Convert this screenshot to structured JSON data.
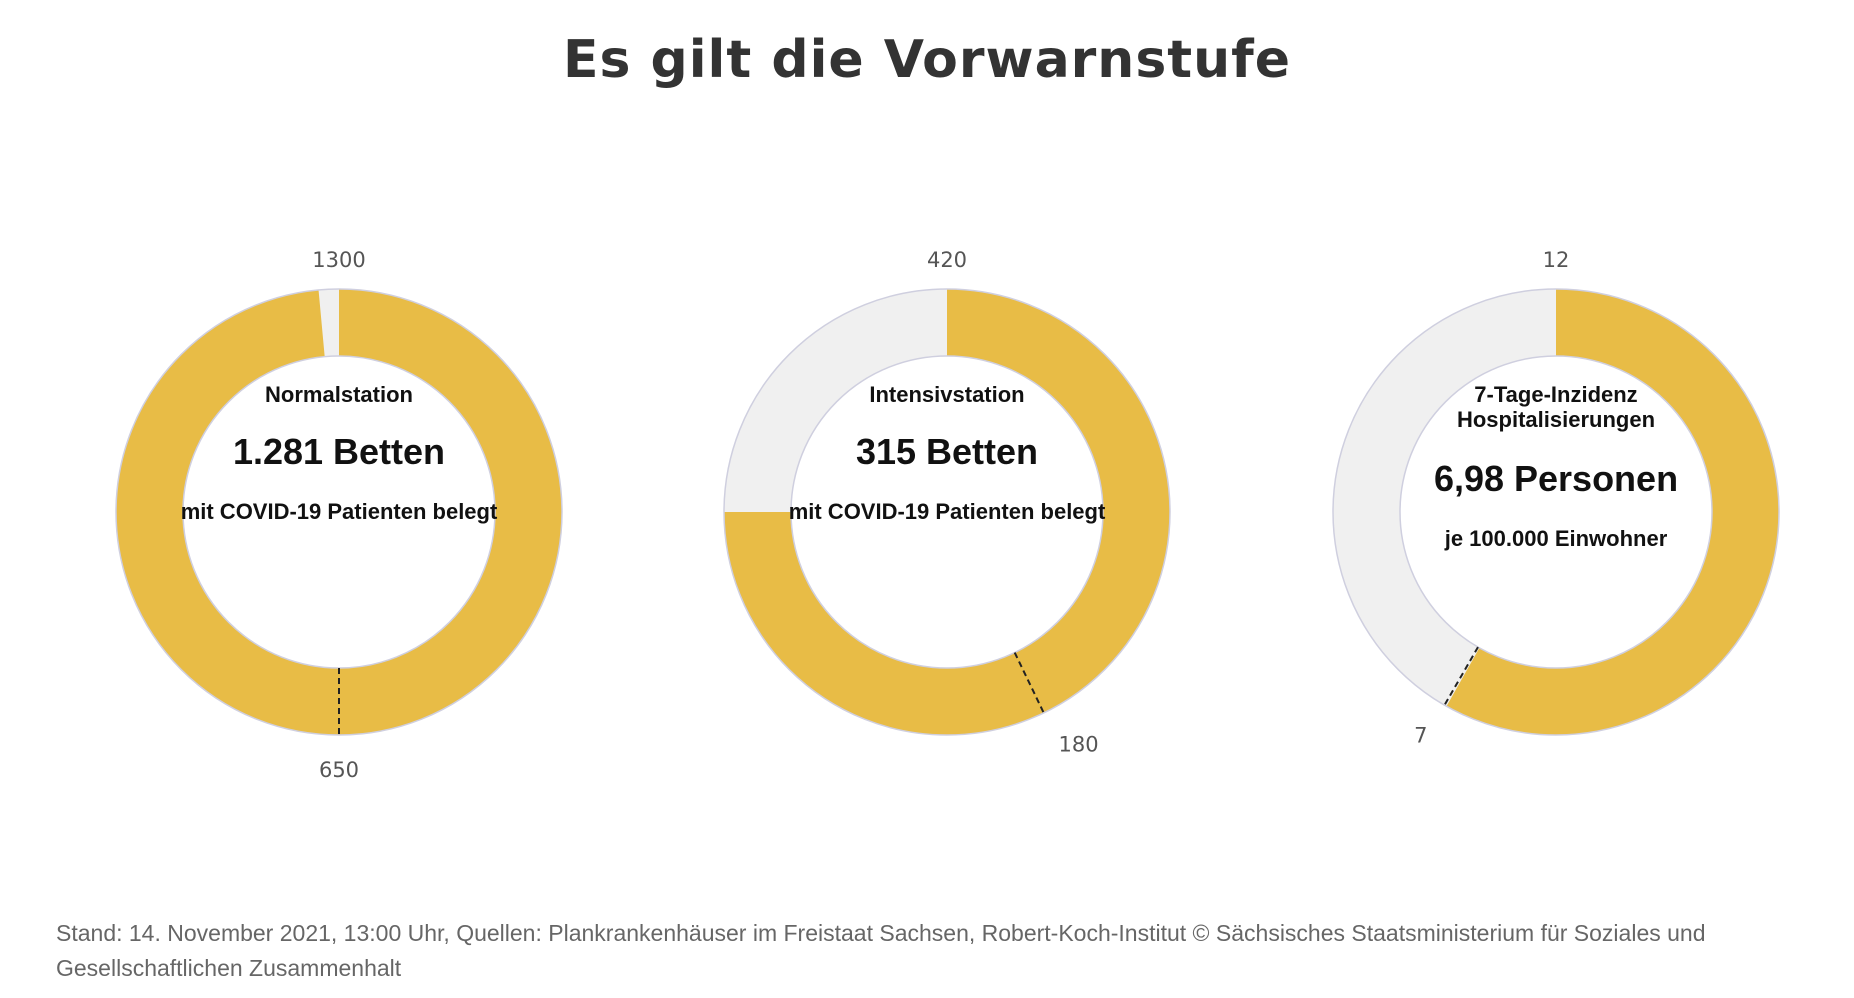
{
  "title": "Es gilt die Vorwarnstufe",
  "colors": {
    "fill": "#E8BC46",
    "track": "#F0F0F0",
    "stroke": "#CFCFDF",
    "marker": "#222222"
  },
  "chart_data": [
    {
      "type": "gauge",
      "title": "Normalstation",
      "value": 1281,
      "value_text": "1.281 Betten",
      "subtitle": "mit COVID-19 Patienten belegt",
      "max": 1300,
      "max_label": "1300",
      "threshold": 650,
      "threshold_label": "650"
    },
    {
      "type": "gauge",
      "title": "Intensivstation",
      "value": 315,
      "value_text": "315 Betten",
      "subtitle": "mit COVID-19 Patienten belegt",
      "max": 420,
      "max_label": "420",
      "threshold": 180,
      "threshold_label": "180"
    },
    {
      "type": "gauge",
      "title": "7-Tage-Inzidenz Hospitalisierungen",
      "value": 6.98,
      "value_text": "6,98 Personen",
      "subtitle": "je 100.000 Einwohner",
      "max": 12,
      "max_label": "12",
      "threshold": 7,
      "threshold_label": "7"
    }
  ],
  "footer": "Stand: 14. November 2021, 13:00 Uhr, Quellen: Plankrankenhäuser im Freistaat Sachsen, Robert-Koch-Institut © Sächsisches Staatsministerium für Soziales und Gesellschaftlichen Zusammenhalt"
}
